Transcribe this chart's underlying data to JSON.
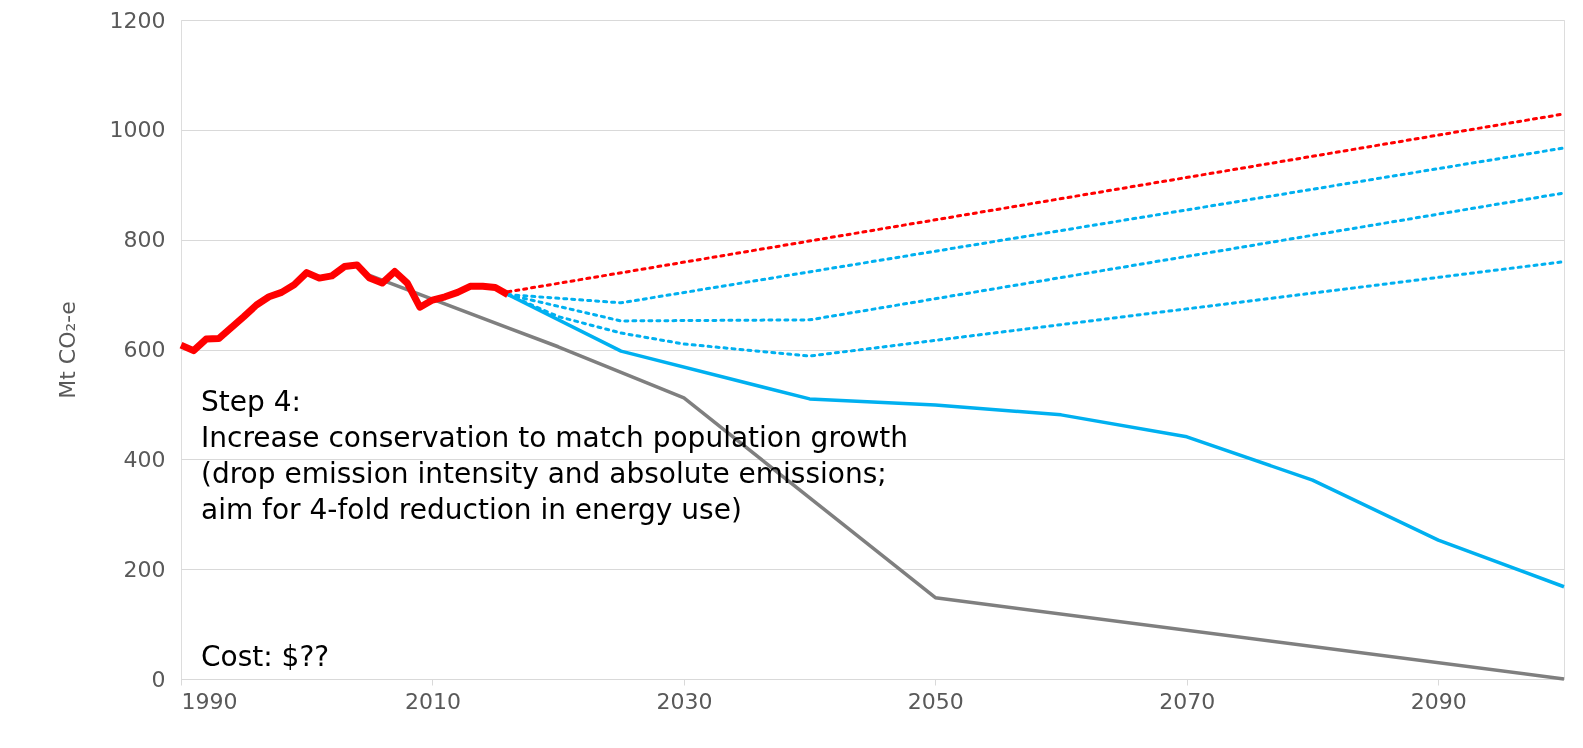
{
  "chart_data": {
    "type": "line",
    "ylabel": "Mt CO₂-e",
    "xlim": [
      1990,
      2100
    ],
    "xticks": [
      1990,
      2010,
      2030,
      2050,
      2070,
      2090
    ],
    "ylim": [
      0,
      1200
    ],
    "yticks": [
      0,
      200,
      400,
      600,
      800,
      1000,
      1200
    ],
    "grid": "y",
    "marker": "none",
    "annotations": [
      "Step 4:\nIncrease conservation to match population growth\n(drop emission intensity and absolute emissions;\naim for 4-fold reduction in energy use)",
      "Cost:  $??"
    ],
    "series": [
      {
        "color": "#7f7f7f",
        "line_style": "solid",
        "x": [
          2005,
          2020,
          2030,
          2050,
          2100
        ],
        "values": [
          735,
          605,
          512,
          148,
          0
        ]
      },
      {
        "color": "#00b0f0",
        "line_style": "solid",
        "x": [
          2016,
          2025,
          2040,
          2050,
          2060,
          2070,
          2080,
          2090,
          2100
        ],
        "values": [
          700,
          597,
          510,
          499,
          481,
          441,
          362,
          253,
          168
        ]
      },
      {
        "color": "#ff0000",
        "line_style": "dotted",
        "x": [
          2016,
          2100
        ],
        "values": [
          705,
          1029
        ]
      },
      {
        "color": "#00b0f0",
        "line_style": "dotted",
        "x": [
          2016,
          2025,
          2100
        ],
        "values": [
          700,
          685,
          967
        ]
      },
      {
        "color": "#00b0f0",
        "line_style": "dotted",
        "x": [
          2016,
          2025,
          2040,
          2100
        ],
        "values": [
          700,
          652,
          654,
          885
        ]
      },
      {
        "color": "#00b0f0",
        "line_style": "dotted",
        "x": [
          2016,
          2020,
          2025,
          2030,
          2040,
          2100
        ],
        "values": [
          700,
          660,
          630,
          610,
          588,
          760
        ]
      },
      {
        "color": "#ff0000",
        "line_style": "solid",
        "x": [
          1990,
          1991,
          1992,
          1993,
          1994,
          1995,
          1996,
          1997,
          1998,
          1999,
          2000,
          2001,
          2002,
          2003,
          2004,
          2005,
          2006,
          2007,
          2008,
          2009,
          2010,
          2011,
          2012,
          2013,
          2014,
          2015,
          2016
        ],
        "values": [
          608,
          598,
          619,
          620,
          640,
          660,
          681,
          696,
          704,
          718,
          740,
          730,
          734,
          751,
          754,
          730,
          721,
          742,
          721,
          677,
          690,
          696,
          704,
          715,
          715,
          713,
          700
        ]
      }
    ]
  }
}
